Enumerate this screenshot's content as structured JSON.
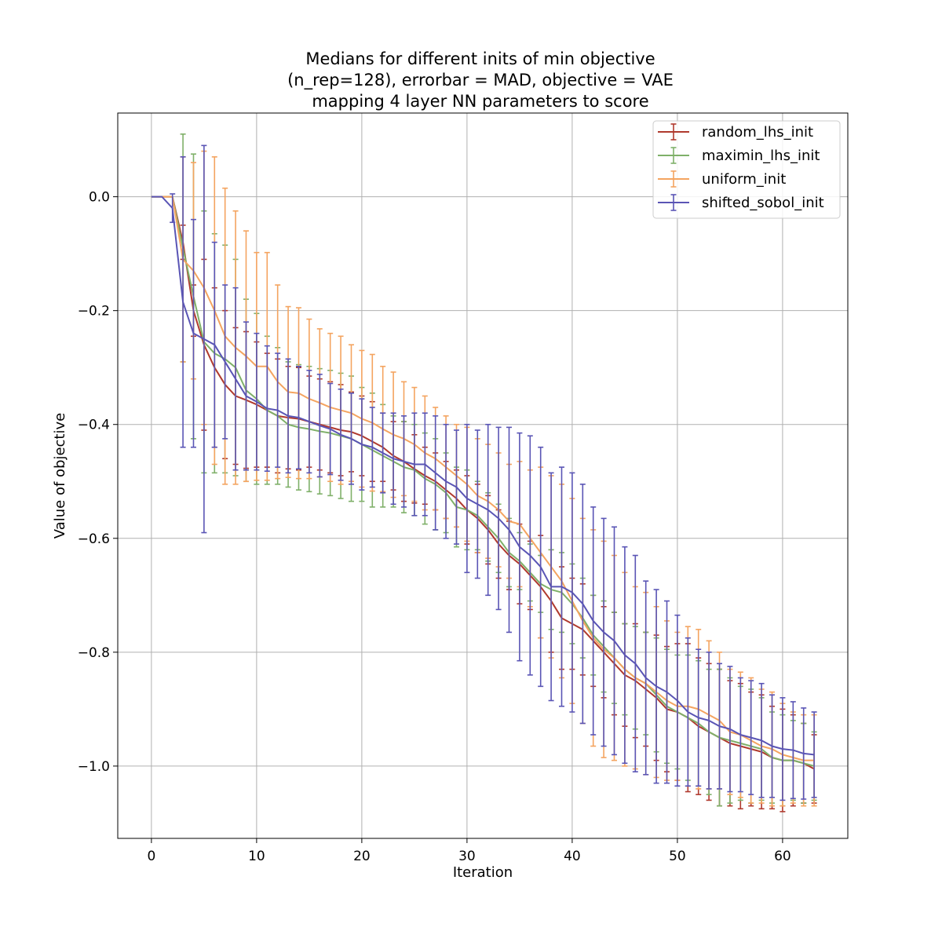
{
  "chart_data": {
    "type": "line",
    "title_lines": [
      "Medians for different inits of min objective",
      "(n_rep=128), errorbar = MAD, objective = VAE",
      "mapping 4 layer NN parameters to score"
    ],
    "xlabel": "Iteration",
    "ylabel": "Value of objective",
    "xlim": [
      -3.2,
      66.2
    ],
    "ylim": [
      -1.127,
      0.147
    ],
    "xticks": [
      0,
      10,
      20,
      30,
      40,
      50,
      60
    ],
    "xtick_labels": [
      "0",
      "10",
      "20",
      "30",
      "40",
      "50",
      "60"
    ],
    "yticks": [
      0.0,
      -0.2,
      -0.4,
      -0.6,
      -0.8,
      -1.0
    ],
    "ytick_labels": [
      "0.0",
      "−0.2",
      "−0.4",
      "−0.6",
      "−0.8",
      "−1.0"
    ],
    "grid": true,
    "legend_position": "top-right",
    "x": [
      0,
      1,
      2,
      3,
      4,
      5,
      6,
      7,
      8,
      9,
      10,
      11,
      12,
      13,
      14,
      15,
      16,
      17,
      18,
      19,
      20,
      21,
      22,
      23,
      24,
      25,
      26,
      27,
      28,
      29,
      30,
      31,
      32,
      33,
      34,
      35,
      36,
      37,
      38,
      39,
      40,
      41,
      42,
      43,
      44,
      45,
      46,
      47,
      48,
      49,
      50,
      51,
      52,
      53,
      54,
      55,
      56,
      57,
      58,
      59,
      60,
      61,
      62,
      63
    ],
    "series": [
      {
        "name": "random_lhs_init",
        "color": "#b03a2e",
        "values": [
          0,
          0,
          0,
          -0.08,
          -0.2,
          -0.26,
          -0.3,
          -0.33,
          -0.35,
          -0.357,
          -0.365,
          -0.375,
          -0.385,
          -0.388,
          -0.39,
          -0.395,
          -0.4,
          -0.405,
          -0.41,
          -0.413,
          -0.42,
          -0.43,
          -0.44,
          -0.455,
          -0.465,
          -0.478,
          -0.49,
          -0.5,
          -0.515,
          -0.53,
          -0.55,
          -0.565,
          -0.585,
          -0.61,
          -0.63,
          -0.645,
          -0.665,
          -0.685,
          -0.71,
          -0.74,
          -0.75,
          -0.76,
          -0.78,
          -0.8,
          -0.82,
          -0.84,
          -0.85,
          -0.865,
          -0.88,
          -0.9,
          -0.905,
          -0.915,
          -0.93,
          -0.94,
          -0.95,
          -0.96,
          -0.965,
          -0.97,
          -0.975,
          -0.985,
          -0.99,
          -0.99,
          -0.995,
          -1.005
        ],
        "err": [
          0,
          0,
          0,
          0.03,
          0.045,
          0.15,
          0.14,
          0.13,
          0.12,
          0.12,
          0.11,
          0.1,
          0.1,
          0.09,
          0.09,
          0.08,
          0.08,
          0.08,
          0.08,
          0.07,
          0.07,
          0.07,
          0.06,
          0.06,
          0.07,
          0.06,
          0.05,
          0.05,
          0.05,
          0.05,
          0.06,
          0.06,
          0.06,
          0.06,
          0.06,
          0.07,
          0.06,
          0.09,
          0.09,
          0.09,
          0.08,
          0.08,
          0.08,
          0.08,
          0.09,
          0.09,
          0.1,
          0.1,
          0.11,
          0.11,
          0.12,
          0.13,
          0.12,
          0.12,
          0.12,
          0.11,
          0.11,
          0.1,
          0.1,
          0.09,
          0.09,
          0.08,
          0.07,
          0.06
        ]
      },
      {
        "name": "maximin_lhs_init",
        "color": "#7fb069",
        "values": [
          0,
          0,
          0,
          -0.09,
          -0.175,
          -0.255,
          -0.275,
          -0.285,
          -0.3,
          -0.34,
          -0.355,
          -0.375,
          -0.385,
          -0.4,
          -0.405,
          -0.408,
          -0.412,
          -0.415,
          -0.42,
          -0.425,
          -0.435,
          -0.445,
          -0.455,
          -0.465,
          -0.475,
          -0.48,
          -0.495,
          -0.505,
          -0.52,
          -0.545,
          -0.55,
          -0.56,
          -0.58,
          -0.6,
          -0.625,
          -0.64,
          -0.66,
          -0.68,
          -0.69,
          -0.695,
          -0.715,
          -0.74,
          -0.77,
          -0.79,
          -0.81,
          -0.83,
          -0.845,
          -0.855,
          -0.875,
          -0.895,
          -0.905,
          -0.915,
          -0.925,
          -0.94,
          -0.95,
          -0.955,
          -0.96,
          -0.965,
          -0.97,
          -0.985,
          -0.99,
          -0.99,
          -0.995,
          -1.0
        ],
        "err": [
          0,
          0,
          0,
          0.2,
          0.25,
          0.23,
          0.21,
          0.2,
          0.19,
          0.16,
          0.15,
          0.13,
          0.12,
          0.11,
          0.11,
          0.11,
          0.11,
          0.11,
          0.11,
          0.11,
          0.1,
          0.1,
          0.09,
          0.08,
          0.08,
          0.08,
          0.08,
          0.08,
          0.07,
          0.07,
          0.07,
          0.06,
          0.06,
          0.06,
          0.06,
          0.05,
          0.05,
          0.05,
          0.07,
          0.07,
          0.07,
          0.07,
          0.07,
          0.08,
          0.08,
          0.08,
          0.09,
          0.09,
          0.1,
          0.1,
          0.1,
          0.11,
          0.11,
          0.11,
          0.12,
          0.11,
          0.1,
          0.1,
          0.09,
          0.08,
          0.08,
          0.07,
          0.07,
          0.06
        ]
      },
      {
        "name": "uniform_init",
        "color": "#f4a460",
        "values": [
          0,
          0,
          0,
          -0.11,
          -0.13,
          -0.16,
          -0.2,
          -0.245,
          -0.265,
          -0.28,
          -0.298,
          -0.298,
          -0.325,
          -0.343,
          -0.345,
          -0.355,
          -0.362,
          -0.37,
          -0.375,
          -0.38,
          -0.39,
          -0.397,
          -0.408,
          -0.418,
          -0.425,
          -0.435,
          -0.45,
          -0.46,
          -0.475,
          -0.49,
          -0.505,
          -0.525,
          -0.535,
          -0.55,
          -0.57,
          -0.575,
          -0.6,
          -0.625,
          -0.65,
          -0.675,
          -0.71,
          -0.745,
          -0.775,
          -0.795,
          -0.81,
          -0.83,
          -0.845,
          -0.855,
          -0.87,
          -0.885,
          -0.895,
          -0.895,
          -0.9,
          -0.91,
          -0.92,
          -0.94,
          -0.945,
          -0.955,
          -0.965,
          -0.97,
          -0.98,
          -0.985,
          -0.99,
          -0.99
        ],
        "err": [
          0,
          0,
          0,
          0.18,
          0.19,
          0.24,
          0.27,
          0.26,
          0.24,
          0.22,
          0.2,
          0.2,
          0.17,
          0.15,
          0.15,
          0.14,
          0.13,
          0.13,
          0.13,
          0.12,
          0.12,
          0.12,
          0.11,
          0.11,
          0.1,
          0.1,
          0.1,
          0.09,
          0.09,
          0.09,
          0.1,
          0.1,
          0.1,
          0.1,
          0.1,
          0.11,
          0.12,
          0.15,
          0.16,
          0.17,
          0.18,
          0.18,
          0.19,
          0.19,
          0.18,
          0.17,
          0.16,
          0.16,
          0.15,
          0.14,
          0.13,
          0.14,
          0.14,
          0.13,
          0.12,
          0.11,
          0.11,
          0.11,
          0.1,
          0.1,
          0.09,
          0.08,
          0.08,
          0.08
        ]
      },
      {
        "name": "shifted_sobol_init",
        "color": "#5a55b5",
        "values": [
          0,
          0,
          -0.02,
          -0.185,
          -0.24,
          -0.25,
          -0.26,
          -0.29,
          -0.32,
          -0.35,
          -0.36,
          -0.372,
          -0.375,
          -0.385,
          -0.388,
          -0.395,
          -0.402,
          -0.408,
          -0.418,
          -0.425,
          -0.435,
          -0.44,
          -0.45,
          -0.46,
          -0.465,
          -0.47,
          -0.47,
          -0.485,
          -0.5,
          -0.51,
          -0.53,
          -0.54,
          -0.55,
          -0.565,
          -0.585,
          -0.615,
          -0.63,
          -0.65,
          -0.685,
          -0.685,
          -0.695,
          -0.715,
          -0.745,
          -0.765,
          -0.78,
          -0.805,
          -0.82,
          -0.845,
          -0.86,
          -0.87,
          -0.885,
          -0.905,
          -0.915,
          -0.92,
          -0.93,
          -0.935,
          -0.945,
          -0.95,
          -0.955,
          -0.965,
          -0.97,
          -0.972,
          -0.978,
          -0.98
        ],
        "err": [
          0,
          0,
          0.025,
          0.255,
          0.2,
          0.34,
          0.18,
          0.135,
          0.16,
          0.13,
          0.12,
          0.11,
          0.1,
          0.1,
          0.09,
          0.09,
          0.09,
          0.08,
          0.08,
          0.08,
          0.08,
          0.07,
          0.07,
          0.08,
          0.08,
          0.09,
          0.09,
          0.1,
          0.1,
          0.1,
          0.13,
          0.13,
          0.15,
          0.16,
          0.18,
          0.2,
          0.21,
          0.21,
          0.2,
          0.21,
          0.21,
          0.21,
          0.2,
          0.2,
          0.2,
          0.19,
          0.19,
          0.17,
          0.17,
          0.16,
          0.15,
          0.13,
          0.12,
          0.12,
          0.11,
          0.11,
          0.1,
          0.1,
          0.1,
          0.09,
          0.09,
          0.085,
          0.08,
          0.075
        ]
      }
    ]
  }
}
